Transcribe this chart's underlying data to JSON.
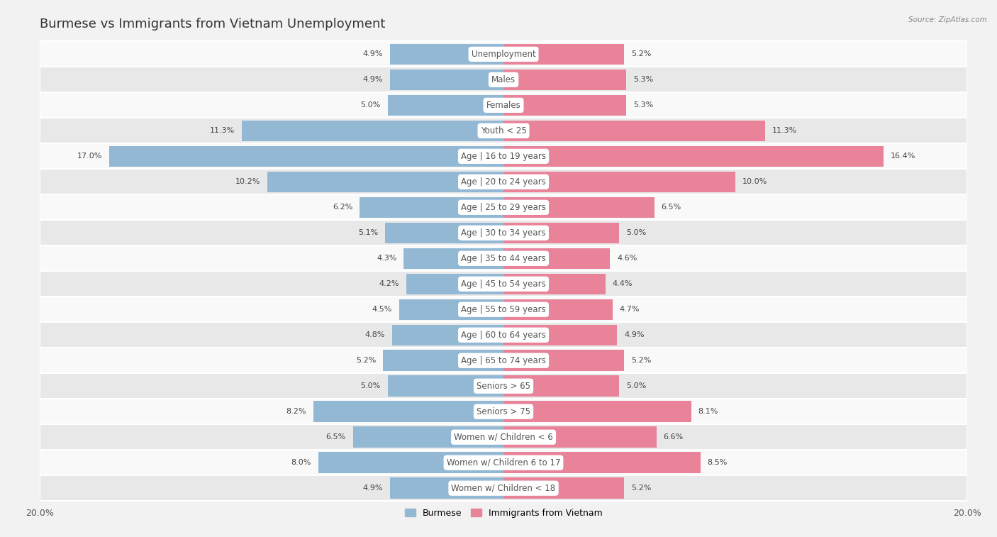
{
  "title": "Burmese vs Immigrants from Vietnam Unemployment",
  "source": "Source: ZipAtlas.com",
  "categories": [
    "Unemployment",
    "Males",
    "Females",
    "Youth < 25",
    "Age | 16 to 19 years",
    "Age | 20 to 24 years",
    "Age | 25 to 29 years",
    "Age | 30 to 34 years",
    "Age | 35 to 44 years",
    "Age | 45 to 54 years",
    "Age | 55 to 59 years",
    "Age | 60 to 64 years",
    "Age | 65 to 74 years",
    "Seniors > 65",
    "Seniors > 75",
    "Women w/ Children < 6",
    "Women w/ Children 6 to 17",
    "Women w/ Children < 18"
  ],
  "burmese": [
    4.9,
    4.9,
    5.0,
    11.3,
    17.0,
    10.2,
    6.2,
    5.1,
    4.3,
    4.2,
    4.5,
    4.8,
    5.2,
    5.0,
    8.2,
    6.5,
    8.0,
    4.9
  ],
  "vietnam": [
    5.2,
    5.3,
    5.3,
    11.3,
    16.4,
    10.0,
    6.5,
    5.0,
    4.6,
    4.4,
    4.7,
    4.9,
    5.2,
    5.0,
    8.1,
    6.6,
    8.5,
    5.2
  ],
  "burmese_color": "#92b8d4",
  "vietnam_color": "#e8839a",
  "xlim": 20.0,
  "background_color": "#f2f2f2",
  "row_bg_odd": "#f9f9f9",
  "row_bg_even": "#e8e8e8",
  "bar_height": 0.82,
  "title_fontsize": 13,
  "label_fontsize": 8.5,
  "value_fontsize": 8,
  "legend_labels": [
    "Burmese",
    "Immigrants from Vietnam"
  ],
  "legend_color_burmese": "#92b8d4",
  "legend_color_vietnam": "#e8839a"
}
